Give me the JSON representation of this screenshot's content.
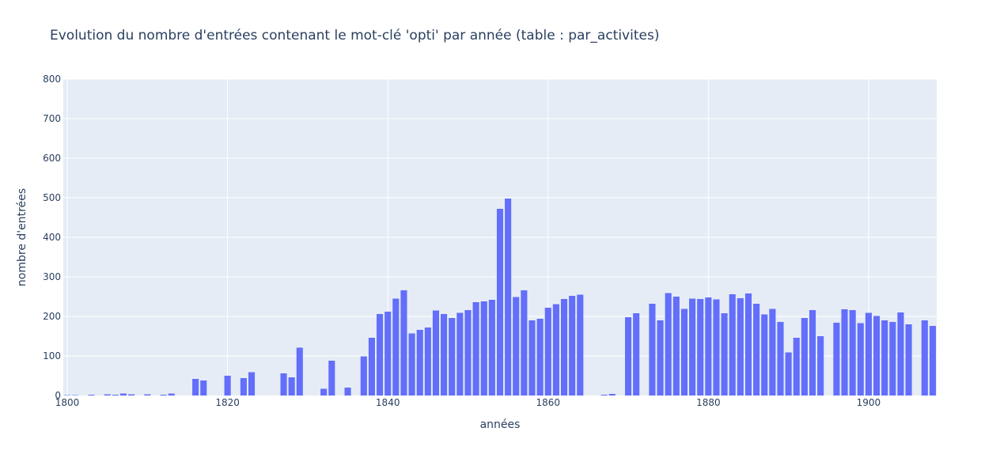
{
  "chart_data": {
    "type": "bar",
    "title": "Evolution du nombre d'entrées contenant le mot-clé 'opti' par année (table : par_activites)",
    "xlabel": "années",
    "ylabel": "nombre d'entrées",
    "xlim": [
      1799.5,
      1908.5
    ],
    "ylim": [
      0,
      800
    ],
    "x_ticks": [
      1800,
      1820,
      1840,
      1860,
      1880,
      1900
    ],
    "y_ticks": [
      0,
      100,
      200,
      300,
      400,
      500,
      600,
      700,
      800
    ],
    "grid": true,
    "bar_color": "#636efa",
    "plot_bgcolor": "#e5ecf6",
    "x": [
      1800,
      1801,
      1802,
      1803,
      1804,
      1805,
      1806,
      1807,
      1808,
      1809,
      1810,
      1811,
      1812,
      1813,
      1814,
      1815,
      1816,
      1817,
      1818,
      1819,
      1820,
      1821,
      1822,
      1823,
      1824,
      1825,
      1826,
      1827,
      1828,
      1829,
      1830,
      1831,
      1832,
      1833,
      1834,
      1835,
      1836,
      1837,
      1838,
      1839,
      1840,
      1841,
      1842,
      1843,
      1844,
      1845,
      1846,
      1847,
      1848,
      1849,
      1850,
      1851,
      1852,
      1853,
      1854,
      1855,
      1856,
      1857,
      1858,
      1859,
      1860,
      1861,
      1862,
      1863,
      1864,
      1865,
      1866,
      1867,
      1868,
      1869,
      1870,
      1871,
      1872,
      1873,
      1874,
      1875,
      1876,
      1877,
      1878,
      1879,
      1880,
      1881,
      1882,
      1883,
      1884,
      1885,
      1886,
      1887,
      1888,
      1889,
      1890,
      1891,
      1892,
      1893,
      1894,
      1895,
      1896,
      1897,
      1898,
      1899,
      1900,
      1901,
      1902,
      1903,
      1904,
      1905,
      1906,
      1907,
      1908
    ],
    "values": [
      1,
      1,
      0,
      2,
      0,
      3,
      2,
      5,
      3,
      0,
      3,
      0,
      2,
      5,
      0,
      0,
      42,
      38,
      0,
      0,
      50,
      0,
      44,
      59,
      0,
      0,
      0,
      56,
      46,
      121,
      0,
      0,
      17,
      88,
      0,
      20,
      0,
      99,
      146,
      206,
      212,
      245,
      266,
      157,
      166,
      172,
      215,
      206,
      196,
      209,
      216,
      236,
      238,
      242,
      472,
      498,
      249,
      266,
      190,
      194,
      222,
      231,
      244,
      252,
      255,
      0,
      0,
      2,
      4,
      0,
      198,
      208,
      0,
      232,
      190,
      259,
      250,
      219,
      245,
      244,
      248,
      243,
      208,
      256,
      246,
      258,
      232,
      205,
      219,
      186,
      109,
      146,
      196,
      216,
      150,
      0,
      184,
      218,
      216,
      183,
      209,
      201,
      190,
      186,
      210,
      180,
      0,
      190,
      176
    ]
  }
}
